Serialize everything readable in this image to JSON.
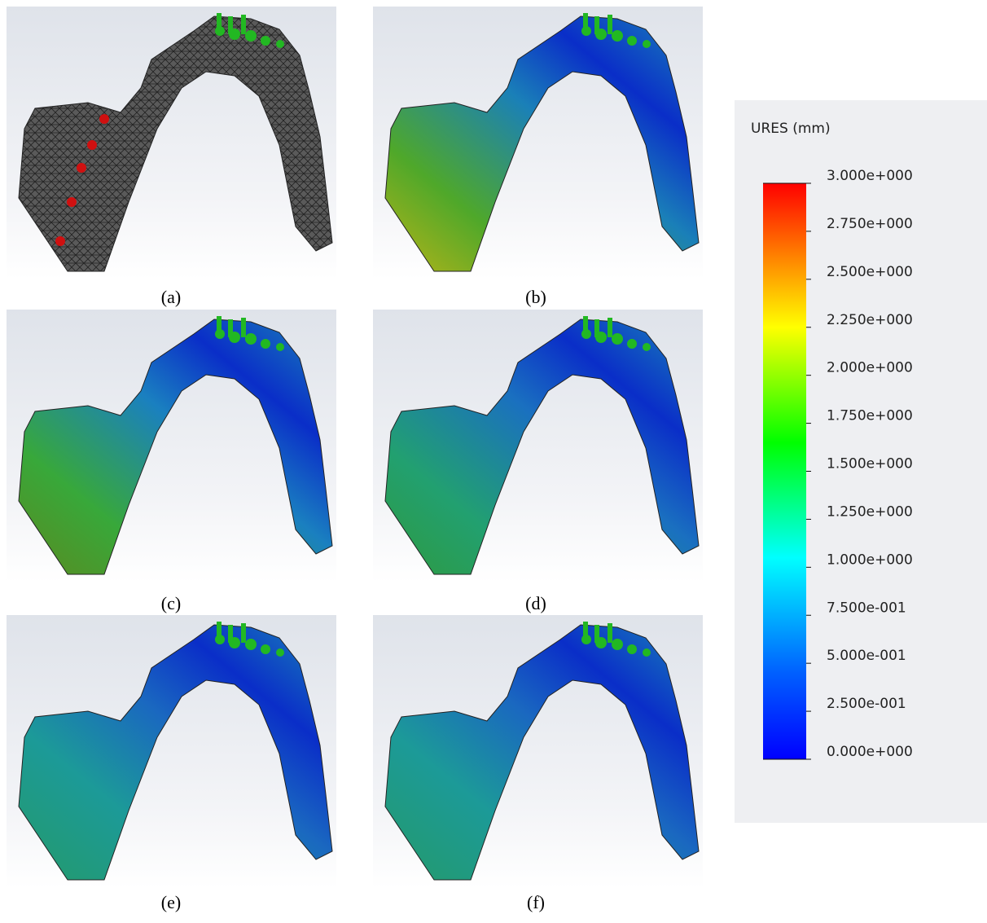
{
  "panels": [
    {
      "label": "(a)"
    },
    {
      "label": "(b)"
    },
    {
      "label": "(c)"
    },
    {
      "label": "(d)"
    },
    {
      "label": "(e)"
    },
    {
      "label": "(f)"
    }
  ],
  "legend": {
    "title": "URES (mm)",
    "ticks": [
      "3.000e+000",
      "2.750e+000",
      "2.500e+000",
      "2.250e+000",
      "2.000e+000",
      "1.750e+000",
      "1.500e+000",
      "1.250e+000",
      "1.000e+000",
      "7.500e-001",
      "5.000e-001",
      "2.500e-001",
      "0.000e+000"
    ]
  }
}
